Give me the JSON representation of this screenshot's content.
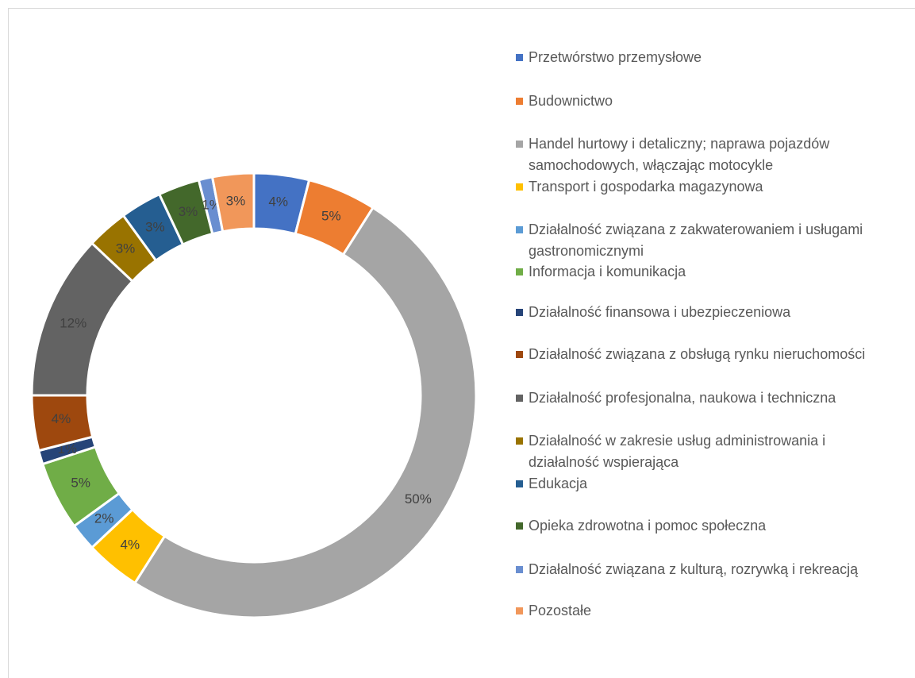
{
  "chart_data": {
    "type": "donut",
    "categories": [
      "Przetwórstwo przemysłowe",
      "Budownictwo",
      "Handel hurtowy i detaliczny; naprawa pojazdów samochodowych, włączając motocykle",
      "Transport i gospodarka magazynowa",
      "Działalność związana z zakwaterowaniem i usługami gastronomicznymi",
      "Informacja i komunikacja",
      "Działalność finansowa i ubezpieczeniowa",
      "Działalność związana z obsługą rynku nieruchomości",
      "Działalność profesjonalna, naukowa i techniczna",
      "Działalność w zakresie usług administrowania i działalność wspierająca",
      "Edukacja",
      "Opieka zdrowotna i pomoc społeczna",
      "Działalność związana z kulturą, rozrywką i rekreacją",
      "Pozostałe"
    ],
    "values": [
      4,
      5,
      50,
      4,
      2,
      5,
      1,
      4,
      12,
      3,
      3,
      3,
      1,
      3
    ],
    "value_labels": [
      "4%",
      "5%",
      "50%",
      "4%",
      "2%",
      "5%",
      "1%",
      "4%",
      "12%",
      "3%",
      "3%",
      "3%",
      "1%",
      "3%"
    ],
    "colors": [
      "#4472C4",
      "#ED7D31",
      "#A5A5A5",
      "#FFC000",
      "#5B9BD5",
      "#70AD47",
      "#264478",
      "#9E480E",
      "#636363",
      "#997300",
      "#255E91",
      "#43682B",
      "#698ED0",
      "#F1975A"
    ],
    "legend": "right"
  }
}
